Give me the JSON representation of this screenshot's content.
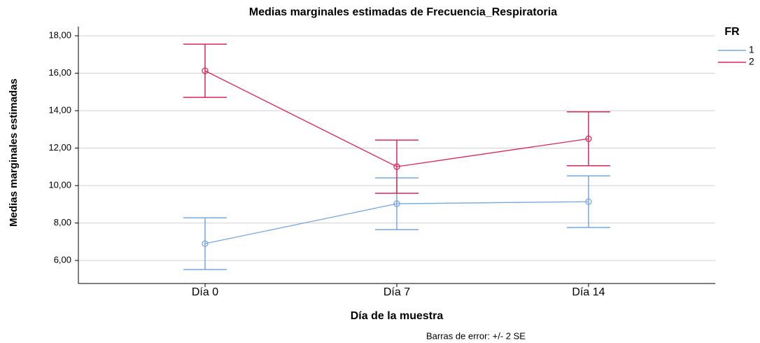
{
  "chart_data": {
    "type": "line",
    "title": "Medias marginales estimadas de Frecuencia_Respiratoria",
    "x_label": "Día de la muestra",
    "y_label": "Medias marginales estimadas",
    "footnote": "Barras de error: +/- 2 SE",
    "legend_title": "FR",
    "legend": "right",
    "grid": true,
    "categories": [
      "Día 0",
      "Día 7",
      "Día 14"
    ],
    "series": [
      {
        "name": "1",
        "color": "#79a6de",
        "values": [
          6.9,
          9.03,
          9.14
        ],
        "errors": [
          1.38,
          1.38,
          1.38
        ]
      },
      {
        "name": "2",
        "color": "#d6285a",
        "values": [
          16.13,
          11.01,
          12.5
        ],
        "errors": [
          1.42,
          1.42,
          1.44
        ]
      }
    ],
    "ylim": [
      4.77,
      18.49
    ],
    "yticks": [
      {
        "value": 6,
        "label": "6,00"
      },
      {
        "value": 8,
        "label": "8,00"
      },
      {
        "value": 10,
        "label": "10,00"
      },
      {
        "value": 12,
        "label": "12,00"
      },
      {
        "value": 14,
        "label": "14,00"
      },
      {
        "value": 16,
        "label": "16,00"
      },
      {
        "value": 18,
        "label": "18,00"
      }
    ]
  }
}
